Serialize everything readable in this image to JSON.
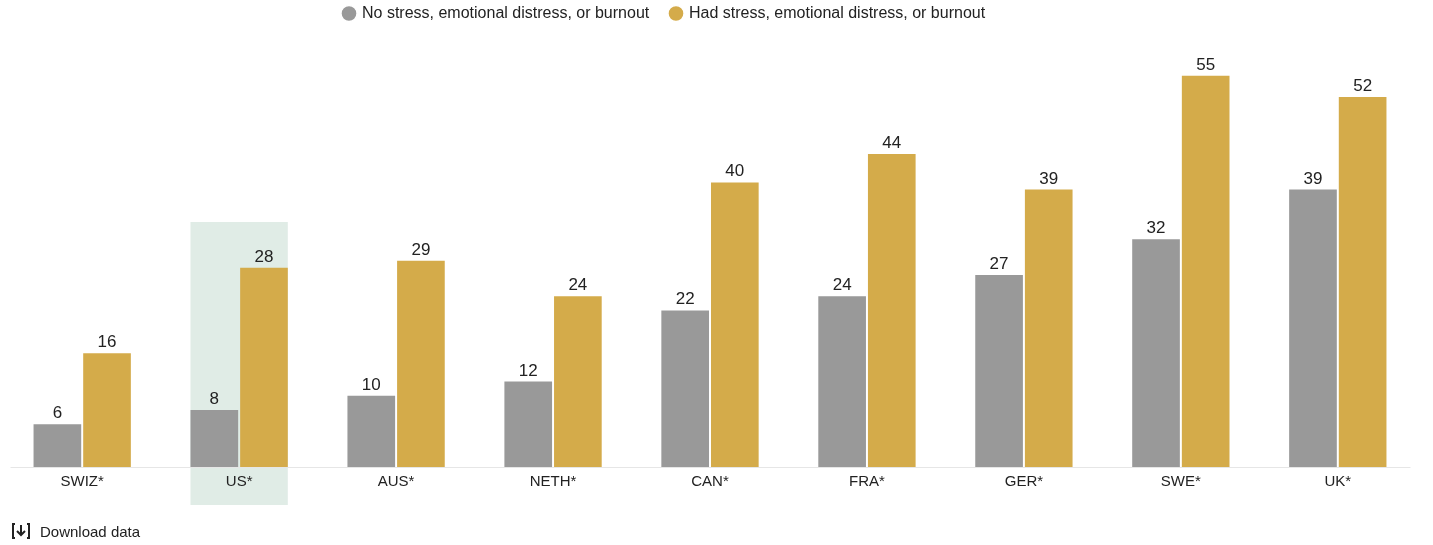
{
  "chart_data": {
    "type": "bar",
    "categories": [
      "SWIZ*",
      "US*",
      "AUS*",
      "NETH*",
      "CAN*",
      "FRA*",
      "GER*",
      "SWE*",
      "UK*"
    ],
    "series": [
      {
        "name": "No stress, emotional distress, or burnout",
        "color": "#999999",
        "values": [
          6,
          8,
          10,
          12,
          22,
          24,
          27,
          32,
          39
        ]
      },
      {
        "name": "Had stress, emotional distress, or burnout",
        "color": "#d4ab4a",
        "values": [
          16,
          28,
          29,
          24,
          40,
          44,
          39,
          55,
          52
        ]
      }
    ],
    "data_labels": true,
    "legend": "top",
    "grid": false,
    "bands": [
      {
        "axis": "x",
        "from": "US*",
        "to": "US*",
        "color": "#e0ece6"
      }
    ],
    "annotations": [
      "Download data"
    ]
  }
}
